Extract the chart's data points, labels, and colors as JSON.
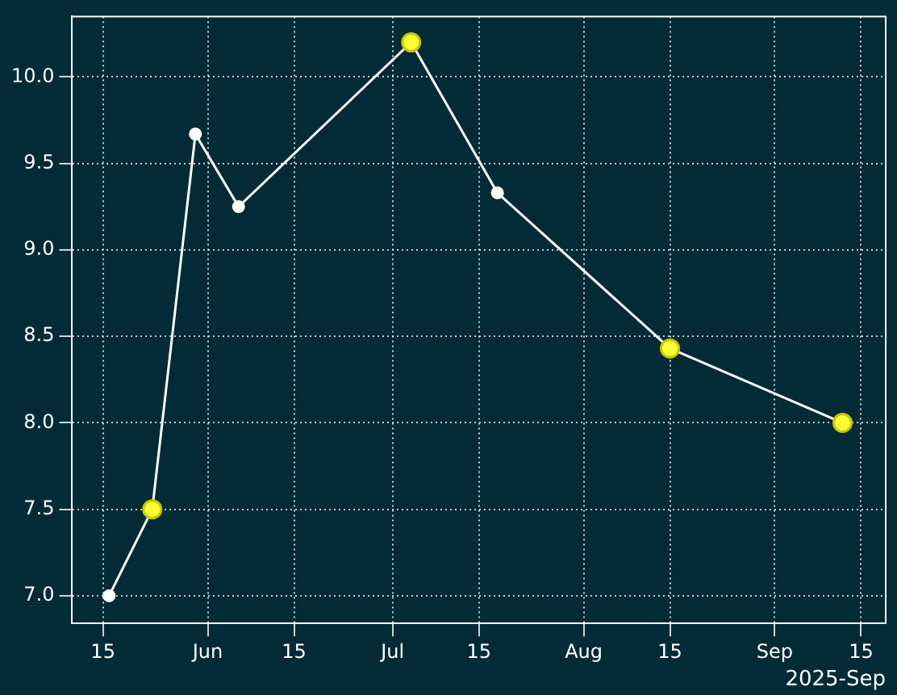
{
  "chart_data": {
    "type": "line",
    "x": [
      "2025-05-16",
      "2025-05-23",
      "2025-05-30",
      "2025-06-06",
      "2025-07-04",
      "2025-07-18",
      "2025-08-15",
      "2025-09-12"
    ],
    "series": [
      {
        "color": "#ffffff",
        "values": [
          7.0,
          7.5,
          9.67,
          9.25,
          10.2,
          9.33,
          8.43,
          8.0
        ],
        "marker": "circle",
        "colors": [
          "#ffffff",
          "#ffff33",
          "#ffffff",
          "#ffffff",
          "#ffff33",
          "#ffffff",
          "#ffff33",
          "#ffff33"
        ]
      }
    ],
    "xlim": [
      "2025-05-10",
      "2025-09-19"
    ],
    "xticks": [
      {
        "value": "2025-05-15",
        "label": "15"
      },
      {
        "value": "2025-06-01",
        "label": "Jun"
      },
      {
        "value": "2025-06-15",
        "label": "15"
      },
      {
        "value": "2025-07-01",
        "label": "Jul"
      },
      {
        "value": "2025-07-15",
        "label": "15"
      },
      {
        "value": "2025-08-01",
        "label": "Aug"
      },
      {
        "value": "2025-08-15",
        "label": "15"
      },
      {
        "value": "2025-09-01",
        "label": "Sep"
      },
      {
        "value": "2025-09-15",
        "label": "15"
      }
    ],
    "ylim": [
      6.84,
      10.35
    ],
    "yticks": [
      {
        "value": 7.0,
        "label": "7.0"
      },
      {
        "value": 7.5,
        "label": "7.5"
      },
      {
        "value": 8.0,
        "label": "8.0"
      },
      {
        "value": 8.5,
        "label": "8.5"
      },
      {
        "value": 9.0,
        "label": "9.0"
      },
      {
        "value": 9.5,
        "label": "9.5"
      },
      {
        "value": 10.0,
        "label": "10.0"
      }
    ],
    "grid": true,
    "line_style": "solid",
    "annotations": [
      "2025-Sep"
    ]
  }
}
